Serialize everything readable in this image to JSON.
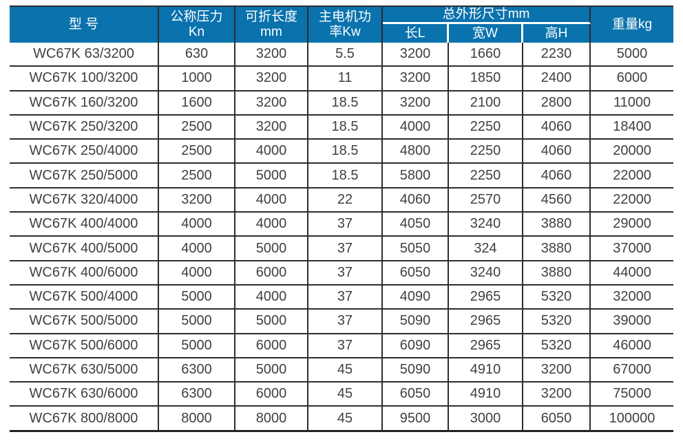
{
  "colors": {
    "header_bg": "#0a72ad",
    "header_text": "#ffffff",
    "grid_line": "#2d2d2d",
    "body_text": "#404040"
  },
  "table": {
    "columns": [
      {
        "label": "型 号",
        "sub": ""
      },
      {
        "label": "公称压力",
        "sub": "Kn"
      },
      {
        "label": "可折长度",
        "sub": "mm"
      },
      {
        "label": "主电机功",
        "sub": "率Kw"
      },
      {
        "label": "重量kg",
        "sub": ""
      }
    ],
    "dimension_group": {
      "label": "总外形尺寸mm",
      "children": [
        "长L",
        "宽W",
        "高H"
      ]
    },
    "rows": [
      [
        "WC67K 63/3200",
        "630",
        "3200",
        "5.5",
        "3200",
        "1660",
        "2230",
        "5000"
      ],
      [
        "WC67K 100/3200",
        "1000",
        "3200",
        "11",
        "3200",
        "1850",
        "2400",
        "6000"
      ],
      [
        "WC67K 160/3200",
        "1600",
        "3200",
        "18.5",
        "3200",
        "2100",
        "2800",
        "11000"
      ],
      [
        "WC67K 250/3200",
        "2500",
        "3200",
        "18.5",
        "4000",
        "2250",
        "4060",
        "18400"
      ],
      [
        "WC67K 250/4000",
        "2500",
        "4000",
        "18.5",
        "4800",
        "2250",
        "4060",
        "20000"
      ],
      [
        "WC67K 250/5000",
        "2500",
        "5000",
        "18.5",
        "5800",
        "2250",
        "4060",
        "22000"
      ],
      [
        "WC67K 320/4000",
        "3200",
        "4000",
        "22",
        "4060",
        "2570",
        "4560",
        "22000"
      ],
      [
        "WC67K 400/4000",
        "4000",
        "4000",
        "37",
        "4050",
        "3240",
        "3880",
        "29000"
      ],
      [
        "WC67K 400/5000",
        "4000",
        "5000",
        "37",
        "5050",
        "324",
        "3880",
        "37000"
      ],
      [
        "WC67K 400/6000",
        "4000",
        "6000",
        "37",
        "6050",
        "3240",
        "3880",
        "44000"
      ],
      [
        "WC67K 500/4000",
        "5000",
        "4000",
        "37",
        "4090",
        "2965",
        "5320",
        "32000"
      ],
      [
        "WC67K 500/5000",
        "5000",
        "5000",
        "37",
        "5090",
        "2965",
        "5320",
        "39000"
      ],
      [
        "WC67K 500/6000",
        "5000",
        "6000",
        "37",
        "6090",
        "2965",
        "5320",
        "46000"
      ],
      [
        "WC67K 630/5000",
        "6300",
        "5000",
        "45",
        "5090",
        "4910",
        "3200",
        "67000"
      ],
      [
        "WC67K 630/6000",
        "6300",
        "6000",
        "45",
        "6050",
        "4910",
        "3200",
        "75000"
      ],
      [
        "WC67K 800/8000",
        "8000",
        "8000",
        "45",
        "9500",
        "3000",
        "6050",
        "100000"
      ]
    ]
  }
}
